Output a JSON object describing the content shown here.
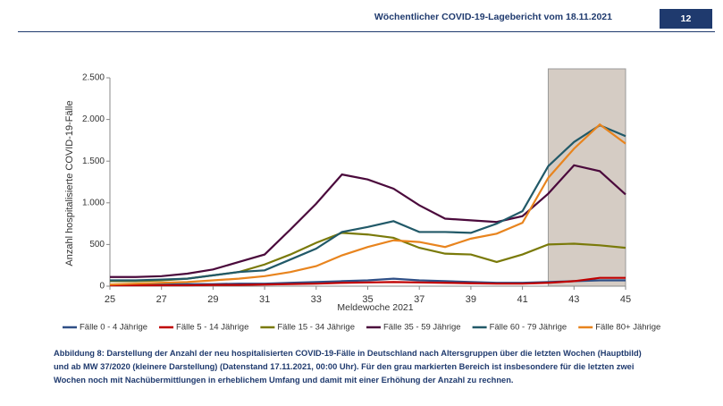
{
  "header": {
    "title": "Wöchentlicher COVID-19-Lagebericht vom 18.11.2021",
    "page": "12"
  },
  "caption": "Abbildung 8: Darstellung der Anzahl der neu hospitalisierten COVID-19-Fälle in Deutschland nach Altersgruppen über die letzten Wochen (Hauptbild) und ab MW 37/2020 (kleinere Darstellung) (Datenstand 17.11.2021, 00:00 Uhr). Für den grau markierten Bereich ist insbesondere für die letzten zwei Wochen noch mit Nachübermittlungen in erheblichem Umfang und damit mit einer Erhöhung der Anzahl zu rechnen.",
  "chart_data": {
    "type": "line",
    "x_label": "Meldewoche 2021",
    "y_label": "Anzahl hospitalisierte COVID-19-Fälle",
    "x": [
      25,
      26,
      27,
      28,
      29,
      30,
      31,
      32,
      33,
      34,
      35,
      36,
      37,
      38,
      39,
      40,
      41,
      42,
      43,
      44,
      45
    ],
    "xlim": [
      25,
      45
    ],
    "xticks": [
      25,
      27,
      29,
      31,
      33,
      35,
      37,
      39,
      41,
      43,
      45
    ],
    "ylim": [
      0,
      2500
    ],
    "yticks": [
      0,
      500,
      {
        "value": 1000,
        "label": "1.000"
      },
      {
        "value": 1500,
        "label": "1.500"
      },
      {
        "value": 2000,
        "label": "2.000"
      },
      {
        "value": 2500,
        "label": "2.500"
      }
    ],
    "shaded_range": [
      42,
      45
    ],
    "shaded_color": "#d5ccc4",
    "legend": "bottom",
    "series": [
      {
        "name": "Fälle 0 - 4 Jährige",
        "color": "#2f4f86",
        "values": [
          20,
          20,
          25,
          25,
          25,
          30,
          30,
          40,
          50,
          60,
          70,
          90,
          70,
          60,
          50,
          40,
          40,
          50,
          60,
          70,
          70
        ]
      },
      {
        "name": "Fälle 5 - 14 Jährige",
        "color": "#c00000",
        "values": [
          10,
          10,
          10,
          10,
          15,
          15,
          20,
          25,
          30,
          40,
          45,
          50,
          45,
          40,
          35,
          30,
          30,
          40,
          60,
          100,
          100
        ]
      },
      {
        "name": "Fälle 15 - 34 Jährige",
        "color": "#7a7a0a",
        "values": [
          60,
          60,
          70,
          90,
          130,
          170,
          260,
          380,
          520,
          640,
          620,
          580,
          460,
          390,
          380,
          290,
          380,
          500,
          510,
          490,
          460
        ]
      },
      {
        "name": "Fälle 35 - 59 Jährige",
        "color": "#4b0a3c",
        "values": [
          110,
          110,
          120,
          150,
          200,
          290,
          380,
          680,
          990,
          1340,
          1280,
          1170,
          970,
          810,
          790,
          770,
          840,
          1110,
          1450,
          1380,
          1100
        ]
      },
      {
        "name": "Fälle 60 - 79 Jährige",
        "color": "#215968",
        "values": [
          70,
          70,
          80,
          90,
          130,
          170,
          190,
          320,
          450,
          650,
          710,
          780,
          650,
          650,
          640,
          750,
          900,
          1440,
          1730,
          1930,
          1800
        ]
      },
      {
        "name": "Fälle 80+ Jährige",
        "color": "#e8841e",
        "values": [
          20,
          30,
          40,
          50,
          70,
          90,
          120,
          170,
          240,
          370,
          470,
          550,
          530,
          470,
          570,
          630,
          760,
          1300,
          1650,
          1940,
          1710
        ]
      }
    ]
  }
}
